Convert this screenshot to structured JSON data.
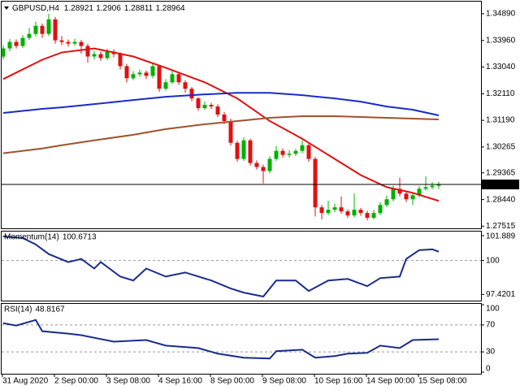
{
  "chart_data": {
    "type": "candlestick",
    "title": "GBPUSD,H4",
    "categories": [
      "31 Aug 2020",
      null,
      null,
      null,
      null,
      null,
      null,
      null,
      "2 Sep 00:00",
      null,
      null,
      null,
      null,
      null,
      null,
      null,
      "3 Sep 08:00",
      null,
      null,
      null,
      null,
      null,
      null,
      null,
      "4 Sep 16:00",
      null,
      null,
      null,
      null,
      null,
      null,
      null,
      "8 Sep 00:00",
      null,
      null,
      null,
      null,
      null,
      null,
      null,
      "9 Sep 08:00",
      null,
      null,
      null,
      null,
      null,
      null,
      null,
      "10 Sep 16:00",
      null,
      null,
      null,
      null,
      null,
      null,
      null,
      "14 Sep 00:00",
      null,
      null,
      null,
      null,
      null,
      null,
      null,
      "15 Sep 08:00",
      null,
      null,
      null
    ],
    "open": [
      1.334,
      1.33686,
      1.3391,
      1.3377,
      1.3405,
      1.3419,
      1.3447,
      1.3419,
      1.34694,
      1.33966,
      1.3391,
      1.33854,
      1.3391,
      1.3377,
      1.33406,
      1.3349,
      1.3335,
      1.33574,
      1.3349,
      1.3307,
      1.3265,
      1.3279,
      1.32846,
      1.32734,
      1.3307,
      1.32286,
      1.3251,
      1.3279,
      1.3251,
      1.32286,
      1.3195,
      1.31614,
      1.31726,
      1.3167,
      1.3139,
      1.31166,
      1.3041,
      1.2985,
      1.30494,
      1.2971,
      1.2957,
      1.2943,
      1.2985,
      1.3013,
      1.2999,
      1.3003,
      1.3013,
      1.30326,
      1.2985,
      1.2817,
      1.27974,
      1.28086,
      1.2817,
      1.2803,
      1.2789,
      1.28086,
      1.27974,
      1.27806,
      1.27974,
      1.28254,
      1.2845,
      1.28814,
      1.28646,
      1.2845,
      1.2859,
      1.28814,
      1.2887,
      1.28921
    ],
    "high": [
      1.338,
      1.3401,
      1.34,
      1.3415,
      1.344,
      1.3462,
      1.3455,
      1.3489,
      1.3478,
      1.3412,
      1.34,
      1.3402,
      1.3398,
      1.3385,
      1.336,
      1.3358,
      1.3368,
      1.3365,
      1.3355,
      1.3315,
      1.329,
      1.3295,
      1.3292,
      1.3318,
      1.3312,
      1.3262,
      1.329,
      1.3285,
      1.3258,
      1.3235,
      1.32,
      1.3185,
      1.318,
      1.3175,
      1.3148,
      1.3125,
      1.3048,
      1.306,
      1.3055,
      1.298,
      1.2965,
      1.2995,
      1.303,
      1.3022,
      1.3015,
      1.302,
      1.305,
      1.304,
      1.2992,
      1.2825,
      1.284,
      1.283,
      1.2855,
      1.281,
      1.2865,
      1.2815,
      1.2805,
      1.2808,
      1.2835,
      1.2858,
      1.2892,
      1.292,
      1.287,
      1.2868,
      1.289,
      1.2925,
      1.2905,
      1.2906
    ],
    "low": [
      1.333,
      1.3359,
      1.3368,
      1.337,
      1.3398,
      1.341,
      1.3405,
      1.3412,
      1.3385,
      1.338,
      1.3375,
      1.3378,
      1.335,
      1.332,
      1.333,
      1.3325,
      1.3328,
      1.3338,
      1.3295,
      1.325,
      1.3258,
      1.327,
      1.3262,
      1.3265,
      1.3218,
      1.3222,
      1.3245,
      1.3242,
      1.3215,
      1.3185,
      1.3152,
      1.3155,
      1.3158,
      1.313,
      1.3105,
      1.3032,
      1.2975,
      1.2978,
      1.2962,
      1.2948,
      1.29,
      1.2935,
      1.2978,
      1.299,
      1.299,
      1.2995,
      1.3005,
      1.2975,
      1.2785,
      1.2775,
      1.279,
      1.28,
      1.2795,
      1.278,
      1.2782,
      1.2788,
      1.2772,
      1.2775,
      1.279,
      1.2818,
      1.2838,
      1.2855,
      1.2835,
      1.2825,
      1.2852,
      1.2875,
      1.288,
      1.28811
    ],
    "close": [
      1.33686,
      1.3391,
      1.3377,
      1.3405,
      1.3419,
      1.3447,
      1.3419,
      1.34694,
      1.33966,
      1.3391,
      1.33854,
      1.3391,
      1.3377,
      1.33406,
      1.3349,
      1.3335,
      1.33574,
      1.3349,
      1.3307,
      1.3265,
      1.3279,
      1.32846,
      1.32734,
      1.3307,
      1.32286,
      1.3251,
      1.3279,
      1.3251,
      1.32286,
      1.3195,
      1.31614,
      1.31726,
      1.3167,
      1.3139,
      1.31166,
      1.3041,
      1.2985,
      1.30494,
      1.2971,
      1.2957,
      1.2943,
      1.2985,
      1.3013,
      1.2999,
      1.3003,
      1.3013,
      1.30326,
      1.2985,
      1.2817,
      1.27974,
      1.28086,
      1.2817,
      1.2803,
      1.2789,
      1.28086,
      1.27974,
      1.27806,
      1.27974,
      1.28254,
      1.2845,
      1.28814,
      1.28646,
      1.2845,
      1.2859,
      1.28814,
      1.2887,
      1.28921,
      1.28964
    ],
    "up_color": "#00b000",
    "down_color": "#e01010",
    "ylim": [
      1.27442,
      1.3531
    ],
    "yticks": [
      {
        "value": 1.3489,
        "label": "1.34890"
      },
      {
        "value": 1.3396,
        "label": "1.33960"
      },
      {
        "value": 1.3304,
        "label": "1.33040"
      },
      {
        "value": 1.3211,
        "label": "1.32110"
      },
      {
        "value": 1.3119,
        "label": "1.31190"
      },
      1.30265,
      1.29365,
      {
        "value": 1.2844,
        "label": "1.28440"
      },
      1.27515
    ],
    "price_line": true,
    "series": [
      {
        "color": "#e01010",
        "x": [
          0,
          6,
          9,
          14,
          20,
          25,
          31,
          36,
          41,
          46,
          51,
          55,
          59,
          63,
          67
        ],
        "values": [
          1.32622,
          1.33294,
          1.33546,
          1.33686,
          1.33406,
          1.33014,
          1.3251,
          1.3195,
          1.31166,
          1.3055,
          1.2985,
          1.2929,
          1.2887,
          1.28674,
          1.28394
        ]
      },
      {
        "color": "#1a2bc8",
        "x": [
          0,
          6,
          9,
          14,
          20,
          25,
          31,
          36,
          41,
          46,
          51,
          55,
          59,
          63,
          67
        ],
        "values": [
          1.31446,
          1.31586,
          1.31642,
          1.31754,
          1.31894,
          1.32006,
          1.3209,
          1.32146,
          1.32146,
          1.32062,
          1.3195,
          1.31838,
          1.3167,
          1.31558,
          1.31362
        ]
      },
      {
        "color": "#a0522d",
        "x": [
          0,
          6,
          9,
          14,
          20,
          25,
          31,
          36,
          41,
          46,
          51,
          55,
          59,
          63,
          67
        ],
        "values": [
          1.30046,
          1.30214,
          1.30326,
          1.30494,
          1.3069,
          1.30886,
          1.31054,
          1.31166,
          1.31278,
          1.31334,
          1.31334,
          1.31306,
          1.31278,
          1.3125,
          1.31222
        ]
      }
    ],
    "indicators": [
      {
        "name": "Momentum(14)",
        "color": "#1a2b8c",
        "x": [
          0,
          3,
          5,
          7,
          10,
          12,
          14,
          15,
          18,
          20,
          22,
          25,
          28,
          32,
          35,
          37,
          40,
          42,
          45,
          47,
          50,
          53,
          56,
          58,
          61,
          62,
          64,
          66,
          67
        ],
        "values": [
          101.83,
          101.71,
          101.22,
          100.49,
          99.88,
          100.12,
          99.39,
          99.88,
          98.78,
          98.48,
          99.39,
          98.78,
          99.09,
          98.48,
          97.87,
          97.56,
          97.26,
          98.48,
          98.48,
          97.68,
          98.48,
          98.6,
          98.05,
          98.66,
          98.78,
          100.12,
          100.79,
          100.85,
          100.6713
        ],
        "ylim": [
          96.95,
          102.2
        ],
        "yticks": [
          101.889,
          100,
          97.4201
        ],
        "levels": [
          100
        ]
      },
      {
        "name": "RSI(14)",
        "color": "#1a2b8c",
        "x": [
          0,
          2,
          5,
          6,
          10,
          12,
          17,
          22,
          25,
          30,
          33,
          37,
          41,
          42,
          46,
          48,
          51,
          53,
          56,
          58,
          61,
          63,
          67
        ],
        "values": [
          72.6,
          69.0,
          77.4,
          60.7,
          57.1,
          54.8,
          45.2,
          47.6,
          39.3,
          35.7,
          27.4,
          21.4,
          20.2,
          31.0,
          33.3,
          21.4,
          23.8,
          27.4,
          28.6,
          39.3,
          35.7,
          47.6,
          48.8167
        ],
        "ylim": [
          0,
          100
        ],
        "yticks": [
          100,
          70,
          30,
          0
        ],
        "levels": [
          70,
          30
        ]
      }
    ]
  }
}
